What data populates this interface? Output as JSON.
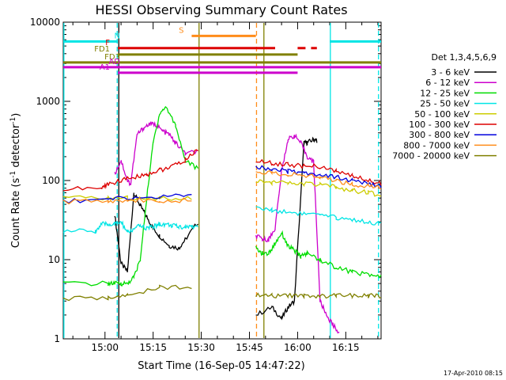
{
  "chart_data": {
    "type": "line",
    "title": "HESSI Observing Summary Count Rates",
    "xlabel": "Start Time (16-Sep-05 14:47:22)",
    "ylabel": "Count Rate (s^-1 detector^-1)",
    "ylabel_text": "Count Rate (s",
    "ylabel_sup1": "-1",
    "ylabel_mid": " detector",
    "ylabel_sup2": "-1",
    "ylabel_end": ")",
    "yscale": "log",
    "ylim": [
      1,
      10000
    ],
    "xlim_minutes_after_1447": [
      0,
      99
    ],
    "x_ticks": [
      {
        "label": "15:00",
        "minutes": 13
      },
      {
        "label": "15:15",
        "minutes": 28
      },
      {
        "label": "15:30",
        "minutes": 43
      },
      {
        "label": "15:45",
        "minutes": 58
      },
      {
        "label": "16:00",
        "minutes": 73
      },
      {
        "label": "16:15",
        "minutes": 88
      }
    ],
    "y_ticks": [
      "1",
      "10",
      "100",
      "1000",
      "10000"
    ],
    "legend_title": "Det 1,3,4,5,6,9",
    "legend_placement": "right",
    "series": [
      {
        "name": "3 - 6 keV",
        "color": "#000000",
        "x": [
          0,
          14,
          16,
          18,
          20,
          22,
          24,
          26,
          28,
          30,
          33,
          36,
          38,
          42,
          55,
          60,
          65,
          68,
          70,
          72,
          75,
          76,
          78,
          79,
          80
        ],
        "y": [
          null,
          null,
          38,
          9,
          7,
          70,
          48,
          35,
          25,
          20,
          15,
          14,
          18,
          30,
          null,
          2,
          2.5,
          1.8,
          2.5,
          3,
          300,
          300,
          330,
          320,
          null
        ]
      },
      {
        "name": "6 - 12 keV",
        "color": "#cc00cc",
        "x": [
          0,
          14,
          16,
          18,
          20,
          21,
          23,
          25,
          27,
          29,
          31,
          33,
          35,
          38,
          42,
          44,
          60,
          62,
          64,
          66,
          68,
          70,
          72,
          74,
          76,
          78,
          80,
          82,
          84,
          86
        ],
        "y": [
          null,
          null,
          120,
          180,
          100,
          90,
          380,
          460,
          520,
          500,
          420,
          380,
          300,
          220,
          230,
          null,
          20,
          18,
          18,
          25,
          130,
          330,
          370,
          300,
          200,
          170,
          3,
          2,
          1.5,
          1.2
        ]
      },
      {
        "name": "12 - 25 keV",
        "color": "#00dd00",
        "x": [
          0,
          14,
          16,
          18,
          20,
          22,
          24,
          26,
          28,
          30,
          32,
          35,
          38,
          42,
          44,
          60,
          62,
          64,
          66,
          68,
          70,
          72,
          74,
          76,
          80,
          85,
          90,
          95,
          99
        ],
        "y": [
          5,
          5,
          5,
          5,
          5,
          6,
          10,
          60,
          300,
          700,
          850,
          500,
          180,
          140,
          null,
          14,
          12,
          12,
          16,
          22,
          15,
          13,
          11,
          12,
          10,
          8,
          7,
          6.5,
          6
        ]
      },
      {
        "name": "25 - 50 keV",
        "color": "#00e5e5",
        "x": [
          0,
          10,
          12,
          14,
          16,
          18,
          20,
          22,
          24,
          26,
          28,
          30,
          32,
          34,
          36,
          38,
          40,
          42,
          44,
          60,
          65,
          70,
          75,
          80,
          85,
          90,
          95,
          99
        ],
        "y": [
          23,
          23,
          28,
          28,
          28,
          30,
          22,
          24,
          27,
          25,
          26,
          28,
          28,
          27,
          26,
          26,
          26,
          27,
          null,
          45,
          42,
          40,
          38,
          36,
          34,
          32,
          30,
          28
        ]
      },
      {
        "name": "50 - 100 keV",
        "color": "#cccc00",
        "x": [
          0,
          14,
          20,
          30,
          40,
          44,
          60,
          65,
          70,
          75,
          80,
          85,
          90,
          95,
          99
        ],
        "y": [
          60,
          60,
          60,
          60,
          60,
          null,
          100,
          95,
          92,
          90,
          88,
          82,
          75,
          70,
          65
        ]
      },
      {
        "name": "100 - 300 keV",
        "color": "#dd0000",
        "x": [
          0,
          12,
          14,
          18,
          22,
          26,
          30,
          34,
          38,
          42,
          44,
          60,
          65,
          70,
          75,
          80,
          85,
          90,
          95,
          99
        ],
        "y": [
          78,
          80,
          90,
          100,
          110,
          120,
          135,
          150,
          180,
          250,
          null,
          175,
          165,
          158,
          152,
          150,
          130,
          115,
          100,
          92
        ]
      },
      {
        "name": "300 - 800 keV",
        "color": "#0000dd",
        "x": [
          0,
          14,
          20,
          30,
          40,
          44,
          60,
          65,
          70,
          75,
          80,
          85,
          90,
          95,
          99
        ],
        "y": [
          55,
          58,
          60,
          62,
          65,
          null,
          150,
          140,
          130,
          125,
          120,
          110,
          100,
          90,
          82
        ]
      },
      {
        "name": "800 - 7000 keV",
        "color": "#ff8c1a",
        "x": [
          0,
          14,
          20,
          30,
          40,
          44,
          60,
          65,
          70,
          75,
          80,
          85,
          90,
          95,
          99
        ],
        "y": [
          54,
          56,
          56,
          56,
          56,
          null,
          130,
          125,
          120,
          115,
          110,
          100,
          90,
          85,
          80
        ]
      },
      {
        "name": "7000 - 20000 keV",
        "color": "#808000",
        "x": [
          0,
          14,
          20,
          30,
          40,
          44,
          60,
          65,
          70,
          75,
          80,
          85,
          90,
          95,
          99
        ],
        "y": [
          3.2,
          3.3,
          3.5,
          4.5,
          4.5,
          null,
          3.5,
          3.5,
          3.5,
          3.5,
          3.5,
          3.5,
          3.5,
          3.5,
          3.5
        ]
      }
    ],
    "flags": [
      {
        "label": "N",
        "color": "#00e5e5",
        "row_value": 5700,
        "spans": [
          [
            0,
            17
          ],
          [
            83,
            99
          ]
        ]
      },
      {
        "label": "S",
        "color": "#ff8c1a",
        "row_value": 6700,
        "spans": [
          [
            40,
            60
          ]
        ]
      },
      {
        "label": "F",
        "color": "#dd0000",
        "row_value": 4700,
        "spans": [
          [
            17,
            66
          ]
        ],
        "dashed_spans": [
          [
            73,
            79
          ]
        ]
      },
      {
        "label": "FD1",
        "color": "#808000",
        "row_value": 3900,
        "spans": [
          [
            17,
            73
          ]
        ]
      },
      {
        "label": "FD3",
        "color": "#808000",
        "row_value": 3100,
        "spans": [
          [
            0,
            99
          ]
        ]
      },
      {
        "label": "AD",
        "color": "#cc00cc",
        "row_value": 2700,
        "spans": [
          [
            0,
            99
          ]
        ]
      },
      {
        "label": "A1",
        "color": "#cc00cc",
        "row_value": 2300,
        "spans": [
          [
            17,
            73
          ]
        ]
      }
    ],
    "markers": [
      {
        "minutes": 0.2,
        "color": "#00e5e5",
        "style": "solid"
      },
      {
        "minutes": 16.8,
        "color": "#00e5e5",
        "style": "dashed"
      },
      {
        "minutes": 17.3,
        "color": "#000000",
        "style": "solid"
      },
      {
        "minutes": 42.3,
        "color": "#808000",
        "style": "solid"
      },
      {
        "minutes": 60.2,
        "color": "#ff8c1a",
        "style": "dashed"
      },
      {
        "minutes": 62.5,
        "color": "#808000",
        "style": "solid"
      },
      {
        "minutes": 83.2,
        "color": "#00e5e5",
        "style": "solid"
      },
      {
        "minutes": 98.2,
        "color": "#00e5e5",
        "style": "dashed"
      }
    ]
  },
  "footer_date": "17-Apr-2010 08:15"
}
